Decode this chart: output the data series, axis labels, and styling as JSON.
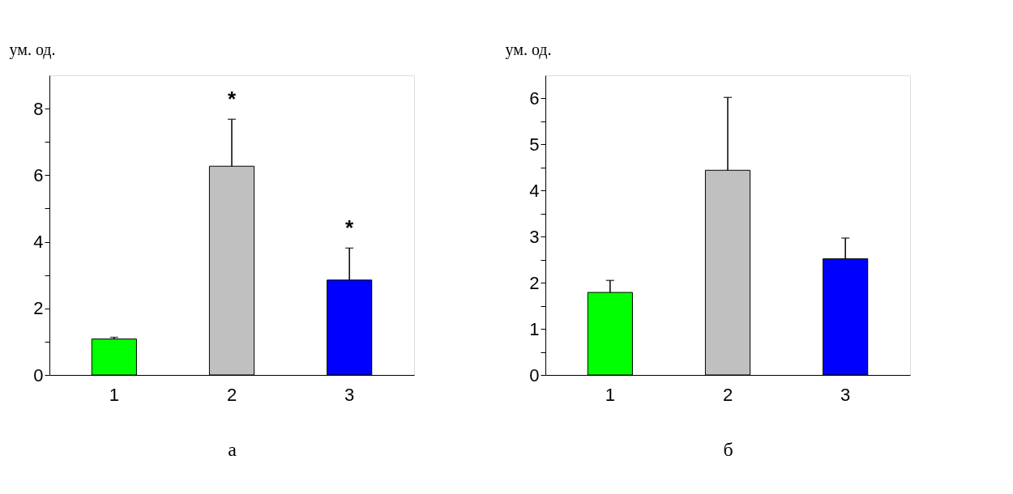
{
  "chart_data": [
    {
      "type": "bar",
      "xlabel": "а",
      "ylabel": "ум. од.",
      "categories": [
        "1",
        "2",
        "3"
      ],
      "values": [
        1.08,
        6.27,
        2.85
      ],
      "colors": [
        "#00ff00",
        "#c0c0c0",
        "#0000ff"
      ],
      "errors": [
        0.05,
        1.41,
        0.96
      ],
      "ylim": [
        0,
        9
      ],
      "yticks": [
        0,
        {
          "value": 1,
          "label": null
        },
        2,
        {
          "value": 3,
          "label": null
        },
        4,
        {
          "value": 5,
          "label": null
        },
        6,
        {
          "value": 7,
          "label": null
        },
        8
      ],
      "annotations": [
        {
          "text": "*",
          "x": "2",
          "y": 7.68
        },
        {
          "text": "*",
          "x": "3",
          "y": 3.81
        }
      ]
    },
    {
      "type": "bar",
      "xlabel": "б",
      "ylabel": "ум. од.",
      "categories": [
        "1",
        "2",
        "3"
      ],
      "values": [
        1.79,
        4.44,
        2.52
      ],
      "colors": [
        "#00ff00",
        "#c0c0c0",
        "#0000ff"
      ],
      "errors": [
        0.26,
        1.58,
        0.45
      ],
      "ylim": [
        0,
        6.5
      ],
      "yticks": [
        0,
        {
          "value": 0.5,
          "label": null
        },
        1,
        {
          "value": 1.5,
          "label": null
        },
        2,
        {
          "value": 2.5,
          "label": null
        },
        3,
        {
          "value": 3.5,
          "label": null
        },
        4,
        {
          "value": 4.5,
          "label": null
        },
        5,
        {
          "value": 5.5,
          "label": null
        },
        6
      ]
    }
  ]
}
